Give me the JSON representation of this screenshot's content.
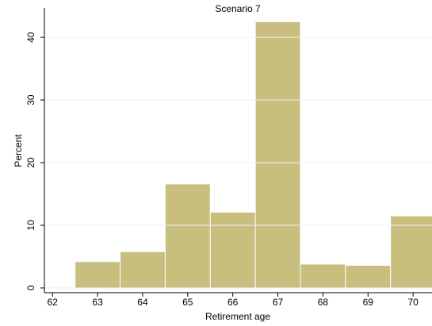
{
  "chart_data": {
    "type": "histogram",
    "title": "Scenario 7",
    "x_label": "Retirement age",
    "y_label": "Percent",
    "bins": [
      62.5,
      63.5,
      64.5,
      65.5,
      66.5,
      67.5,
      68.5,
      69.5,
      70.5
    ],
    "values": [
      4.2,
      5.8,
      16.6,
      12.1,
      42.5,
      3.8,
      3.6,
      11.5
    ],
    "color": "#c8be7e",
    "edge_color": "#ffffff",
    "xlim": [
      61.82,
      70.42
    ],
    "xticks": [
      62,
      63,
      64,
      65,
      66,
      67,
      68,
      69,
      70
    ],
    "ylim": [
      0,
      44.7
    ],
    "yticks": [
      0,
      10,
      20,
      30,
      40
    ],
    "grid": true
  }
}
